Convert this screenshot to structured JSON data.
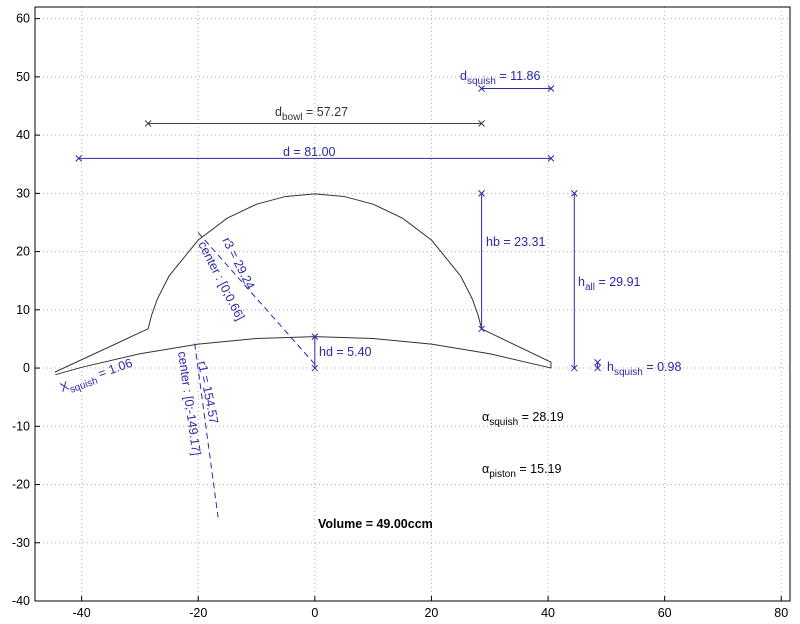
{
  "chart_data": {
    "type": "line",
    "xlim": [
      -48,
      81.5
    ],
    "ylim": [
      -40,
      62
    ],
    "xticks": [
      -40,
      -20,
      0,
      20,
      40,
      60,
      80
    ],
    "yticks": [
      -40,
      -30,
      -20,
      -10,
      0,
      10,
      20,
      30,
      40,
      50,
      60
    ],
    "grid": true,
    "series": [
      {
        "color": "#333333",
        "x": [
          -44.6,
          -28.6,
          -28,
          -27,
          -25,
          -20,
          -15,
          -10,
          -5,
          0,
          5,
          10,
          15,
          20,
          25,
          27,
          28,
          28.6,
          40.5,
          40.5
        ],
        "values": [
          -0.7,
          6.74,
          9.09,
          11.88,
          15.83,
          21.99,
          25.76,
          28.14,
          29.47,
          29.9,
          29.47,
          28.14,
          25.76,
          21.99,
          15.83,
          11.88,
          9.09,
          6.74,
          1.0,
          0.0
        ]
      },
      {
        "color": "#333333",
        "x": [
          -44.5,
          -40,
          -30,
          -20,
          -10,
          0,
          10,
          20,
          30,
          40,
          40.5
        ],
        "values": [
          -1.14,
          0.13,
          2.46,
          4.1,
          5.08,
          5.4,
          5.08,
          4.1,
          2.46,
          0.13,
          0.0
        ]
      },
      {
        "color": "#2a2aa8",
        "line_style": "dashed",
        "x": [
          0,
          -20.4
        ],
        "values": [
          0.66,
          23.7
        ]
      },
      {
        "color": "#2a2aa8",
        "line_style": "dashed",
        "x": [
          -20.6,
          -16.6
        ],
        "values": [
          4.2,
          -25.6
        ]
      },
      {
        "color": "#2a2aa8",
        "marker": "x",
        "x": [
          28.6,
          40.5
        ],
        "values": [
          48,
          48
        ]
      },
      {
        "color": "#404040",
        "marker": "x",
        "x": [
          -28.6,
          28.6
        ],
        "values": [
          42,
          42
        ]
      },
      {
        "color": "#2a2aa8",
        "marker": "x",
        "x": [
          -40.5,
          40.5
        ],
        "values": [
          36,
          36
        ]
      },
      {
        "color": "#2a2aa8",
        "marker": "x",
        "x": [
          28.6,
          28.6
        ],
        "values": [
          6.74,
          30
        ]
      },
      {
        "color": "#2a2aa8",
        "marker": "x",
        "x": [
          44.5,
          44.5
        ],
        "values": [
          0,
          30
        ]
      },
      {
        "color": "#2a2aa8",
        "marker": "x",
        "x": [
          0,
          0
        ],
        "values": [
          0,
          5.4
        ]
      },
      {
        "color": "#2a2aa8",
        "marker": "x",
        "x": [
          48.5,
          48.5
        ],
        "values": [
          0,
          0.98
        ]
      }
    ],
    "annotations": [
      {
        "main": "d",
        "sub": "squish",
        "rest": " = 11.86",
        "color": "#2a2aa8"
      },
      {
        "main": "d",
        "sub": "bowl",
        "rest": " = 57.27",
        "color": "#333333"
      },
      {
        "main": "d = 81.00",
        "color": "#2a2aa8"
      },
      {
        "main": "hb = 23.31",
        "color": "#2a2aa8"
      },
      {
        "main": "h",
        "sub": "all",
        "rest": " = 29.91",
        "color": "#2a2aa8"
      },
      {
        "main": "hd = 5.40",
        "color": "#2a2aa8"
      },
      {
        "main": "h",
        "sub": "squish",
        "rest": " = 0.98",
        "color": "#2a2aa8"
      },
      {
        "main": "α",
        "sub": "squish",
        "rest": " = 28.19",
        "color": "#000000"
      },
      {
        "main": "α",
        "sub": "piston",
        "rest": " = 15.19",
        "color": "#000000"
      },
      {
        "main": "Volume = 49.00ccm",
        "color": "#000000",
        "bold": true
      },
      {
        "main": "r3 = 29.24",
        "color": "#2a2aa8"
      },
      {
        "main": "center : [0;0.66]",
        "color": "#2a2aa8"
      },
      {
        "main": "r1 = 154.57",
        "color": "#2a2aa8"
      },
      {
        "main": "center : [0;-149.17]",
        "color": "#2a2aa8"
      },
      {
        "main": "X",
        "sub": "squish",
        "rest": " = 1.06",
        "color": "#2a2aa8"
      }
    ]
  }
}
